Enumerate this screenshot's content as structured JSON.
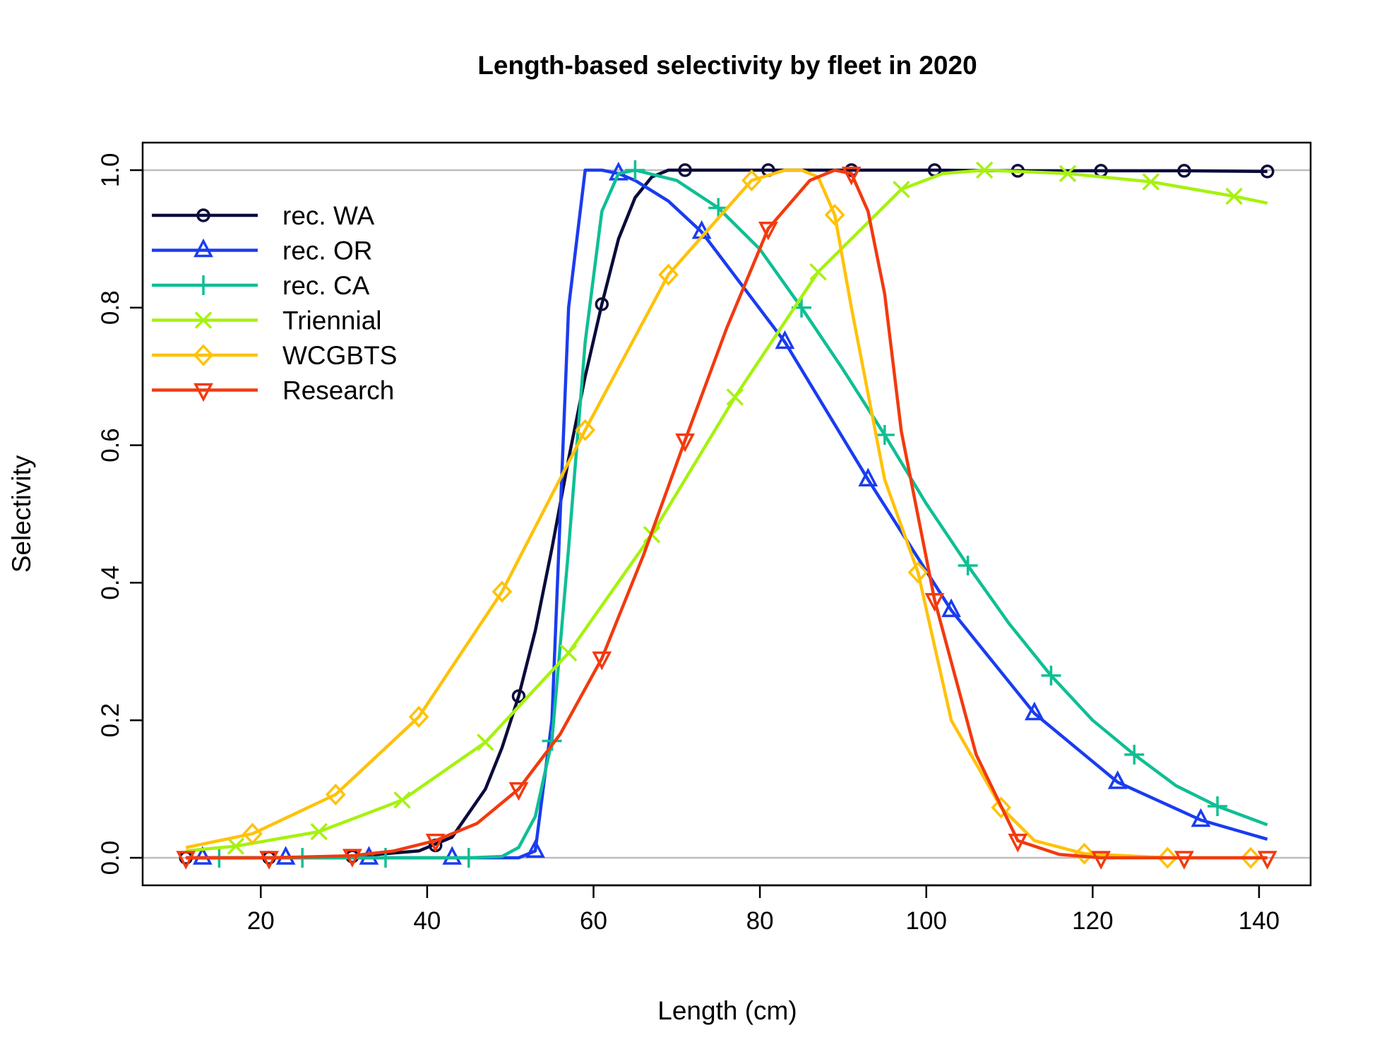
{
  "chart_data": {
    "type": "line",
    "title": "Length-based selectivity by fleet in 2020",
    "xlabel": "Length (cm)",
    "ylabel": "Selectivity",
    "xlim": [
      11,
      141
    ],
    "ylim": [
      0,
      1
    ],
    "x_ticks": [
      20,
      40,
      60,
      80,
      100,
      120,
      140
    ],
    "y_ticks": [
      0.0,
      0.2,
      0.4,
      0.6,
      0.8,
      1.0
    ],
    "x_tick_labels": [
      "20",
      "40",
      "60",
      "80",
      "100",
      "120",
      "140"
    ],
    "y_tick_labels": [
      "0.0",
      "0.2",
      "0.4",
      "0.6",
      "0.8",
      "1.0"
    ],
    "reference_lines": [
      0,
      1
    ],
    "legend_position": "top-left",
    "series": [
      {
        "name": "rec. WA",
        "color": "#0b0b3b",
        "marker": "circle",
        "x": [
          11,
          21,
          31,
          39,
          43,
          47,
          49,
          51,
          53,
          55,
          57,
          59,
          61,
          63,
          65,
          67,
          69,
          71,
          81,
          91,
          101,
          111,
          121,
          131,
          141
        ],
        "y": [
          0.0,
          0.0,
          0.002,
          0.01,
          0.03,
          0.1,
          0.16,
          0.235,
          0.33,
          0.45,
          0.58,
          0.7,
          0.805,
          0.9,
          0.96,
          0.99,
          1.0,
          1.0,
          1.0,
          1.0,
          1.0,
          0.999,
          0.999,
          0.999,
          0.998
        ],
        "marker_x": [
          11,
          21,
          31,
          41,
          51,
          61,
          71,
          81,
          91,
          101,
          111,
          121,
          131,
          141
        ],
        "marker_y": [
          0.0,
          0.0,
          0.002,
          0.018,
          0.235,
          0.805,
          1.0,
          1.0,
          1.0,
          1.0,
          0.999,
          0.999,
          0.999,
          0.998
        ]
      },
      {
        "name": "rec. OR",
        "color": "#1a3cf0",
        "marker": "triangle-up",
        "x": [
          13,
          23,
          33,
          43,
          51,
          53,
          55,
          57,
          59,
          61,
          63,
          65,
          67,
          69,
          73,
          83,
          93,
          103,
          113,
          123,
          133,
          141
        ],
        "y": [
          0.0,
          0.0,
          0.0,
          0.0,
          0.0,
          0.01,
          0.2,
          0.8,
          1.0,
          1.0,
          0.995,
          0.985,
          0.97,
          0.955,
          0.91,
          0.75,
          0.55,
          0.36,
          0.21,
          0.11,
          0.055,
          0.027
        ],
        "marker_x": [
          13,
          23,
          33,
          43,
          53,
          63,
          73,
          83,
          93,
          103,
          113,
          123,
          133
        ],
        "marker_y": [
          0.0,
          0.0,
          0.0,
          0.0,
          0.01,
          0.995,
          0.91,
          0.75,
          0.55,
          0.36,
          0.21,
          0.11,
          0.055
        ]
      },
      {
        "name": "rec. CA",
        "color": "#0fbf94",
        "marker": "plus",
        "x": [
          15,
          25,
          35,
          45,
          49,
          51,
          53,
          55,
          57,
          59,
          61,
          63,
          65,
          70,
          75,
          80,
          85,
          90,
          95,
          100,
          105,
          110,
          115,
          120,
          125,
          130,
          135,
          141
        ],
        "y": [
          0.0,
          0.0,
          0.0,
          0.0,
          0.002,
          0.015,
          0.06,
          0.17,
          0.45,
          0.75,
          0.94,
          0.995,
          1.0,
          0.985,
          0.945,
          0.885,
          0.8,
          0.71,
          0.615,
          0.515,
          0.425,
          0.34,
          0.265,
          0.2,
          0.15,
          0.105,
          0.075,
          0.048
        ],
        "marker_x": [
          15,
          25,
          35,
          45,
          55,
          65,
          75,
          85,
          95,
          105,
          115,
          125,
          135
        ],
        "marker_y": [
          0.0,
          0.0,
          0.0,
          0.0,
          0.17,
          1.0,
          0.945,
          0.8,
          0.615,
          0.425,
          0.265,
          0.15,
          0.075
        ]
      },
      {
        "name": "Triennial",
        "color": "#a6f20f",
        "marker": "cross",
        "x": [
          11,
          17,
          27,
          37,
          47,
          57,
          67,
          77,
          87,
          97,
          102,
          107,
          117,
          127,
          137,
          141
        ],
        "y": [
          0.01,
          0.017,
          0.038,
          0.084,
          0.168,
          0.298,
          0.47,
          0.67,
          0.852,
          0.972,
          0.995,
          1.0,
          0.995,
          0.983,
          0.962,
          0.952
        ],
        "marker_x": [
          17,
          27,
          37,
          47,
          57,
          67,
          77,
          87,
          97,
          107,
          117,
          127,
          137
        ],
        "marker_y": [
          0.017,
          0.038,
          0.084,
          0.168,
          0.298,
          0.47,
          0.67,
          0.852,
          0.972,
          1.0,
          0.995,
          0.983,
          0.962
        ]
      },
      {
        "name": "WCGBTS",
        "color": "#ffc20a",
        "marker": "diamond",
        "x": [
          11,
          19,
          29,
          39,
          49,
          59,
          69,
          79,
          83,
          85,
          87,
          89,
          91,
          95,
          99,
          103,
          109,
          113,
          119,
          129,
          139,
          141
        ],
        "y": [
          0.015,
          0.035,
          0.092,
          0.205,
          0.387,
          0.622,
          0.848,
          0.985,
          1.0,
          1.0,
          0.99,
          0.935,
          0.8,
          0.55,
          0.415,
          0.2,
          0.073,
          0.025,
          0.006,
          0.0,
          0.0,
          0.0
        ],
        "marker_x": [
          19,
          29,
          39,
          49,
          59,
          69,
          79,
          89,
          99,
          109,
          119,
          129,
          139
        ],
        "marker_y": [
          0.035,
          0.092,
          0.205,
          0.387,
          0.622,
          0.848,
          0.985,
          0.935,
          0.415,
          0.073,
          0.006,
          0.0,
          0.0
        ]
      },
      {
        "name": "Research",
        "color": "#f23a0f",
        "marker": "triangle-down",
        "x": [
          11,
          21,
          31,
          36,
          41,
          46,
          51,
          56,
          61,
          66,
          71,
          76,
          81,
          86,
          89,
          91,
          93,
          95,
          97,
          101,
          106,
          111,
          116,
          121,
          131,
          141
        ],
        "y": [
          0.0,
          0.0,
          0.003,
          0.01,
          0.025,
          0.05,
          0.1,
          0.18,
          0.29,
          0.44,
          0.607,
          0.77,
          0.915,
          0.985,
          1.0,
          0.995,
          0.94,
          0.82,
          0.62,
          0.375,
          0.15,
          0.025,
          0.005,
          0.0,
          0.0,
          0.0
        ],
        "marker_x": [
          11,
          21,
          31,
          41,
          51,
          61,
          71,
          81,
          91,
          101,
          111,
          121,
          131,
          141
        ],
        "marker_y": [
          0.0,
          0.0,
          0.003,
          0.025,
          0.1,
          0.29,
          0.607,
          0.915,
          0.995,
          0.375,
          0.025,
          0.0,
          0.0,
          0.0
        ]
      }
    ]
  }
}
